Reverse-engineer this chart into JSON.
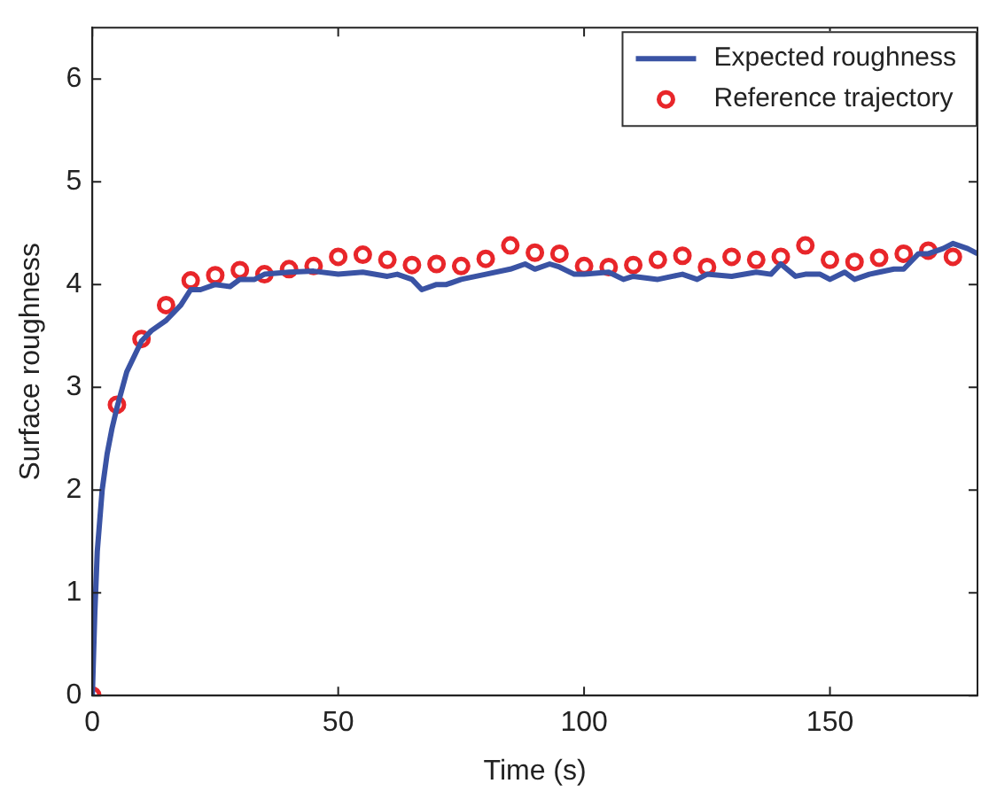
{
  "chart_data": {
    "type": "line",
    "xlabel": "Time (s)",
    "ylabel": "Surface roughness",
    "xlim": [
      0,
      180
    ],
    "ylim": [
      0,
      6.5
    ],
    "xticks": [
      0,
      50,
      100,
      150
    ],
    "yticks": [
      0,
      1,
      2,
      3,
      4,
      5,
      6
    ],
    "grid": false,
    "legend": "top right",
    "series": [
      {
        "name": "Expected roughness",
        "type": "line",
        "color": "#3a53a4",
        "marker": "none",
        "line_style": "solid",
        "x": [
          0,
          0.5,
          1,
          2,
          3,
          4,
          5,
          7,
          10,
          12,
          15,
          18,
          20,
          22,
          25,
          28,
          30,
          33,
          35,
          40,
          45,
          50,
          55,
          60,
          62,
          65,
          67,
          70,
          72,
          75,
          80,
          85,
          88,
          90,
          93,
          95,
          98,
          100,
          105,
          108,
          110,
          115,
          118,
          120,
          123,
          125,
          130,
          135,
          138,
          140,
          143,
          145,
          148,
          150,
          153,
          155,
          158,
          160,
          163,
          165,
          168,
          170,
          173,
          175,
          178,
          180
        ],
        "values": [
          0,
          0.8,
          1.4,
          2.0,
          2.35,
          2.6,
          2.8,
          3.15,
          3.45,
          3.55,
          3.65,
          3.8,
          3.95,
          3.95,
          4.0,
          3.98,
          4.05,
          4.05,
          4.1,
          4.12,
          4.13,
          4.1,
          4.12,
          4.08,
          4.1,
          4.05,
          3.95,
          4.0,
          4.0,
          4.05,
          4.1,
          4.15,
          4.2,
          4.15,
          4.2,
          4.17,
          4.1,
          4.1,
          4.12,
          4.05,
          4.08,
          4.05,
          4.08,
          4.1,
          4.05,
          4.1,
          4.08,
          4.12,
          4.1,
          4.2,
          4.08,
          4.1,
          4.1,
          4.05,
          4.12,
          4.05,
          4.1,
          4.12,
          4.15,
          4.15,
          4.3,
          4.3,
          4.35,
          4.4,
          4.35,
          4.3
        ]
      },
      {
        "name": "Reference trajectory",
        "type": "scatter",
        "color": "#e8262a",
        "marker": "circle",
        "x": [
          0,
          5,
          10,
          15,
          20,
          25,
          30,
          35,
          40,
          45,
          50,
          55,
          60,
          65,
          70,
          75,
          80,
          85,
          90,
          95,
          100,
          105,
          110,
          115,
          120,
          125,
          130,
          135,
          140,
          145,
          150,
          155,
          160,
          165,
          170,
          175
        ],
        "values": [
          0,
          2.83,
          3.47,
          3.8,
          4.04,
          4.09,
          4.14,
          4.1,
          4.15,
          4.18,
          4.27,
          4.29,
          4.24,
          4.19,
          4.2,
          4.18,
          4.25,
          4.38,
          4.31,
          4.3,
          4.18,
          4.17,
          4.19,
          4.24,
          4.28,
          4.17,
          4.27,
          4.24,
          4.27,
          4.38,
          4.24,
          4.22,
          4.26,
          4.3,
          4.33,
          4.27
        ]
      }
    ]
  }
}
